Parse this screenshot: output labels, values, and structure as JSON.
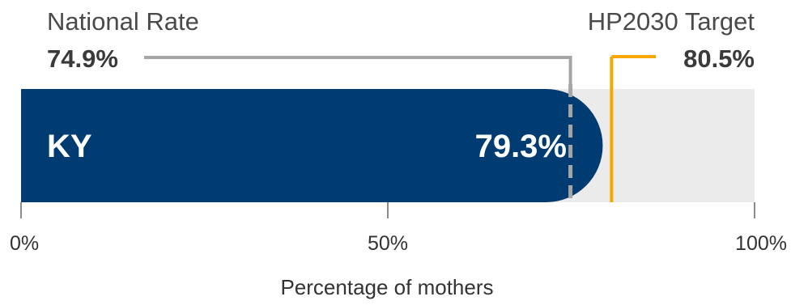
{
  "chart_data": {
    "type": "bar",
    "orientation": "horizontal",
    "categories": [
      "KY"
    ],
    "values": [
      79.3
    ],
    "value_labels": [
      "79.3%"
    ],
    "xlabel": "Percentage of mothers",
    "xlim": [
      0,
      100
    ],
    "ticks": [
      0,
      50,
      100
    ],
    "tick_labels": [
      "0%",
      "50%",
      "100%"
    ],
    "reference_lines": [
      {
        "name": "National Rate",
        "value": 74.9,
        "label": "74.9%",
        "style": "dashed",
        "color": "#a6a6a6"
      },
      {
        "name": "HP2030 Target",
        "value": 80.5,
        "label": "80.5%",
        "style": "solid",
        "color": "#f5a800"
      }
    ],
    "colors": {
      "bar": "#003c71",
      "track": "#ebebeb",
      "national": "#a6a6a6",
      "target": "#f5a800"
    }
  }
}
